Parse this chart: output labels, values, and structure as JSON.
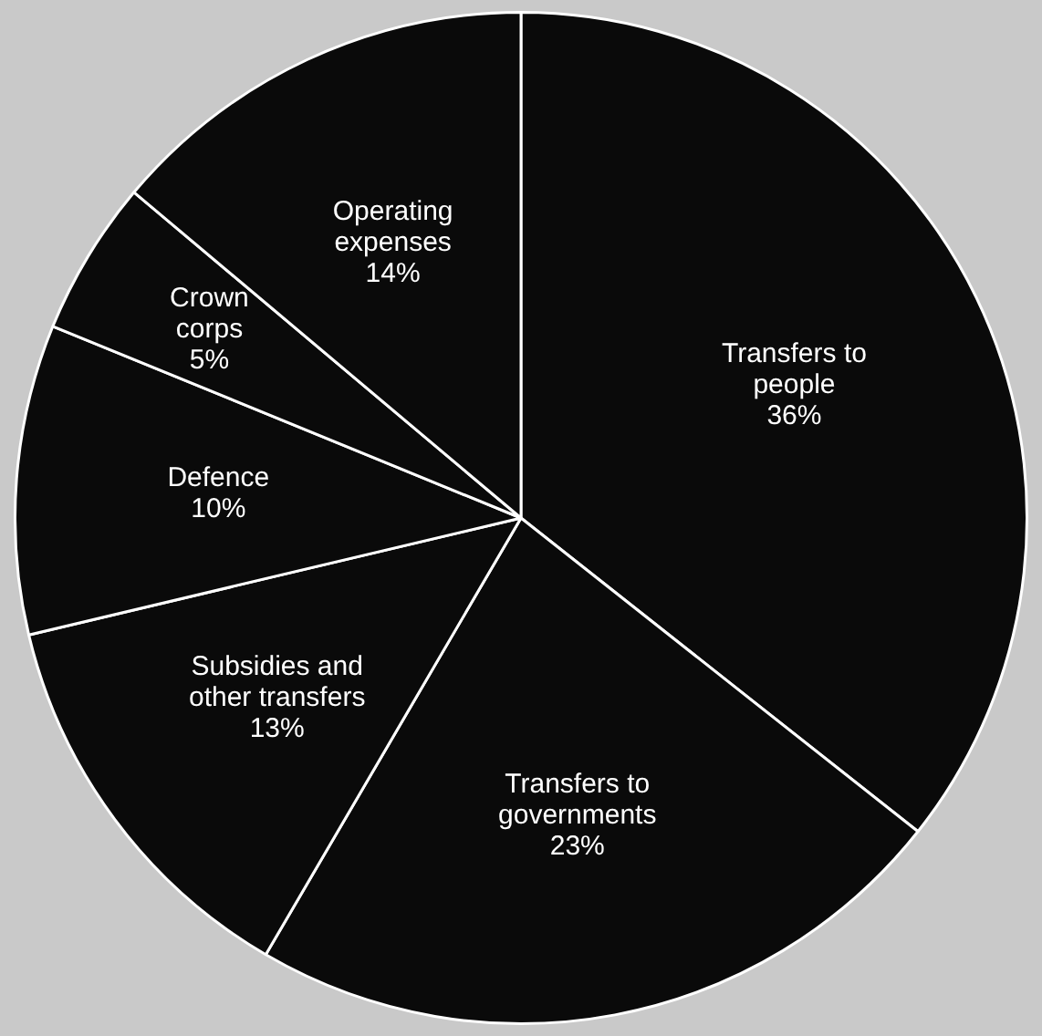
{
  "chart_data": {
    "type": "pie",
    "categories": [
      "Transfers to people",
      "Transfers to governments",
      "Subsidies and other transfers",
      "Defence",
      "Crown corps",
      "Operating expenses"
    ],
    "values": [
      36,
      23,
      13,
      10,
      5,
      14
    ],
    "value_labels": [
      "36%",
      "23%",
      "13%",
      "10%",
      "5%",
      "14%"
    ],
    "colors": [
      "#0a0a0a",
      "#0a0a0a",
      "#0a0a0a",
      "#0a0a0a",
      "#0a0a0a",
      "#0a0a0a"
    ],
    "legend": false
  }
}
